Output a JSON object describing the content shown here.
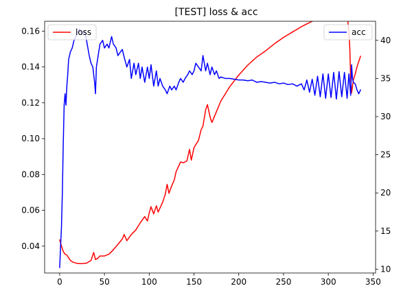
{
  "chart_data": {
    "type": "line",
    "title": "[TEST] loss & acc",
    "x_axis": {
      "lim": [
        -16.8,
        352.8
      ],
      "ticks": [
        0,
        50,
        100,
        150,
        200,
        250,
        300,
        350
      ],
      "tick_labels": [
        "0",
        "50",
        "100",
        "150",
        "200",
        "250",
        "300",
        "350"
      ]
    },
    "y_left": {
      "lim": [
        0.025,
        0.1655
      ],
      "ticks": [
        0.04,
        0.06,
        0.08,
        0.1,
        0.12,
        0.14,
        0.16
      ],
      "tick_labels": [
        "0.04",
        "0.06",
        "0.08",
        "0.10",
        "0.12",
        "0.14",
        "0.16"
      ]
    },
    "y_right": {
      "lim": [
        9.5,
        42.5
      ],
      "ticks": [
        10,
        15,
        20,
        25,
        30,
        35,
        40
      ],
      "tick_labels": [
        "10",
        "15",
        "20",
        "25",
        "30",
        "35",
        "40"
      ]
    },
    "grid": false,
    "series": [
      {
        "name": "loss",
        "axis": "left",
        "color": "#ff0000",
        "legend_position": "upper-left",
        "x": [
          0,
          2,
          4,
          6,
          8,
          10,
          12,
          15,
          20,
          25,
          30,
          35,
          38,
          40,
          42,
          45,
          50,
          55,
          60,
          65,
          70,
          72,
          75,
          80,
          85,
          90,
          95,
          98,
          100,
          102,
          105,
          108,
          110,
          115,
          118,
          120,
          122,
          125,
          128,
          130,
          135,
          138,
          140,
          142,
          145,
          147,
          150,
          155,
          158,
          160,
          163,
          165,
          168,
          170,
          175,
          180,
          190,
          200,
          210,
          220,
          230,
          240,
          250,
          260,
          270,
          280,
          290,
          300,
          310,
          320,
          323,
          324,
          325,
          326,
          328,
          330,
          332,
          334,
          336
        ],
        "y": [
          0.0435,
          0.04,
          0.037,
          0.0355,
          0.035,
          0.0335,
          0.032,
          0.031,
          0.0303,
          0.0302,
          0.0305,
          0.032,
          0.0365,
          0.0325,
          0.033,
          0.0345,
          0.0345,
          0.0355,
          0.038,
          0.041,
          0.044,
          0.0465,
          0.043,
          0.0465,
          0.049,
          0.053,
          0.0565,
          0.054,
          0.0585,
          0.062,
          0.058,
          0.0625,
          0.059,
          0.0645,
          0.069,
          0.0745,
          0.0695,
          0.0735,
          0.077,
          0.0815,
          0.087,
          0.0865,
          0.087,
          0.0875,
          0.094,
          0.088,
          0.095,
          0.099,
          0.105,
          0.107,
          0.116,
          0.119,
          0.112,
          0.109,
          0.115,
          0.121,
          0.129,
          0.1355,
          0.141,
          0.1455,
          0.149,
          0.153,
          0.1565,
          0.1595,
          0.1625,
          0.165,
          0.1675,
          0.1695,
          0.172,
          0.1745,
          0.1595,
          0.1505,
          0.133,
          0.1255,
          0.133,
          0.136,
          0.14,
          0.143,
          0.146
        ]
      },
      {
        "name": "acc",
        "axis": "right",
        "color": "#0000ff",
        "legend_position": "upper-right",
        "x": [
          0,
          1,
          2,
          3,
          4,
          5,
          6,
          7,
          8,
          9,
          10,
          12,
          14,
          16,
          18,
          20,
          22,
          25,
          28,
          30,
          33,
          35,
          37,
          39,
          40,
          41,
          43,
          45,
          48,
          50,
          53,
          55,
          58,
          60,
          63,
          65,
          68,
          70,
          72,
          75,
          78,
          80,
          83,
          85,
          88,
          90,
          92,
          95,
          98,
          100,
          102,
          105,
          108,
          110,
          112,
          115,
          118,
          120,
          123,
          125,
          128,
          130,
          133,
          135,
          138,
          140,
          143,
          145,
          148,
          150,
          152,
          155,
          158,
          160,
          163,
          165,
          168,
          170,
          173,
          175,
          178,
          180,
          185,
          190,
          195,
          200,
          205,
          210,
          215,
          220,
          225,
          230,
          235,
          240,
          245,
          250,
          255,
          260,
          265,
          270,
          273,
          276,
          279,
          282,
          285,
          288,
          291,
          294,
          297,
          300,
          303,
          306,
          309,
          312,
          315,
          318,
          321,
          323,
          325,
          326,
          327,
          328,
          330,
          332,
          334,
          336
        ],
        "y": [
          10.2,
          13.0,
          15.5,
          20.0,
          26.5,
          31.5,
          33.0,
          31.5,
          34.0,
          35.5,
          37.5,
          38.5,
          39.0,
          40.0,
          40.5,
          41.0,
          41.5,
          40.8,
          41.2,
          40.0,
          38.0,
          37.0,
          36.5,
          34.5,
          33.0,
          36.5,
          38.0,
          39.5,
          40.0,
          39.0,
          39.5,
          39.0,
          40.5,
          39.5,
          39.0,
          38.0,
          38.5,
          38.8,
          37.8,
          36.5,
          37.5,
          35.0,
          37.0,
          35.5,
          37.0,
          35.0,
          36.5,
          34.5,
          36.5,
          35.0,
          36.8,
          34.0,
          36.0,
          34.0,
          35.0,
          34.0,
          33.5,
          33.0,
          34.0,
          33.5,
          34.0,
          33.5,
          34.5,
          35.0,
          34.5,
          35.0,
          35.5,
          36.0,
          35.5,
          36.0,
          37.0,
          36.5,
          36.0,
          38.0,
          36.0,
          37.0,
          35.5,
          36.5,
          35.5,
          36.0,
          35.0,
          35.2,
          35.0,
          35.0,
          34.9,
          34.8,
          34.8,
          34.7,
          34.8,
          34.5,
          34.6,
          34.5,
          34.4,
          34.5,
          34.3,
          34.4,
          34.2,
          34.3,
          34.0,
          34.3,
          33.5,
          34.8,
          33.2,
          34.9,
          32.8,
          35.3,
          32.6,
          35.6,
          32.4,
          35.6,
          32.5,
          35.8,
          32.3,
          35.9,
          32.6,
          35.8,
          32.4,
          35.6,
          32.8,
          36.8,
          35.0,
          34.5,
          34.3,
          33.5,
          33.0,
          33.5
        ]
      }
    ]
  }
}
